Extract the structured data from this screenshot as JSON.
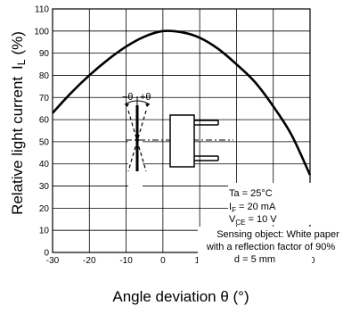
{
  "chart_data": {
    "type": "line",
    "title": "",
    "xlabel": "Angle deviation θ (°)",
    "ylabel": "Relative light current",
    "ylabel_symbol": "I",
    "ylabel_subscript": "L",
    "ylabel_unit": "(%)",
    "xlim": [
      -30,
      40
    ],
    "ylim": [
      0,
      110
    ],
    "x_ticks": [
      "-30",
      "-20",
      "-10",
      "0",
      "10",
      "20",
      "30",
      "40"
    ],
    "y_ticks": [
      "0",
      "10",
      "20",
      "30",
      "40",
      "50",
      "60",
      "70",
      "80",
      "90",
      "100",
      "110"
    ],
    "grid": true,
    "series": [
      {
        "x": [
          -30,
          -25,
          -20,
          -15,
          -10,
          -5,
          0,
          5,
          10,
          15,
          20,
          25,
          30,
          35,
          40
        ],
        "y": [
          63,
          72,
          80,
          87,
          93,
          97.5,
          100,
          99.5,
          97,
          92,
          85,
          77,
          66,
          53,
          35
        ]
      }
    ],
    "annotations": {
      "ta": "Ta = 25°C",
      "if_main": "I",
      "if_sub": "F",
      "if_rest": " = 20 mA",
      "vce_main": "V",
      "vce_sub": "CE",
      "vce_rest": " = 10 V",
      "sensing1": "Sensing object: White paper",
      "sensing2": "with a reflection factor of 90%",
      "distance": "d = 5 mm",
      "theta_minus": "−θ",
      "theta_plus": "+θ"
    }
  }
}
